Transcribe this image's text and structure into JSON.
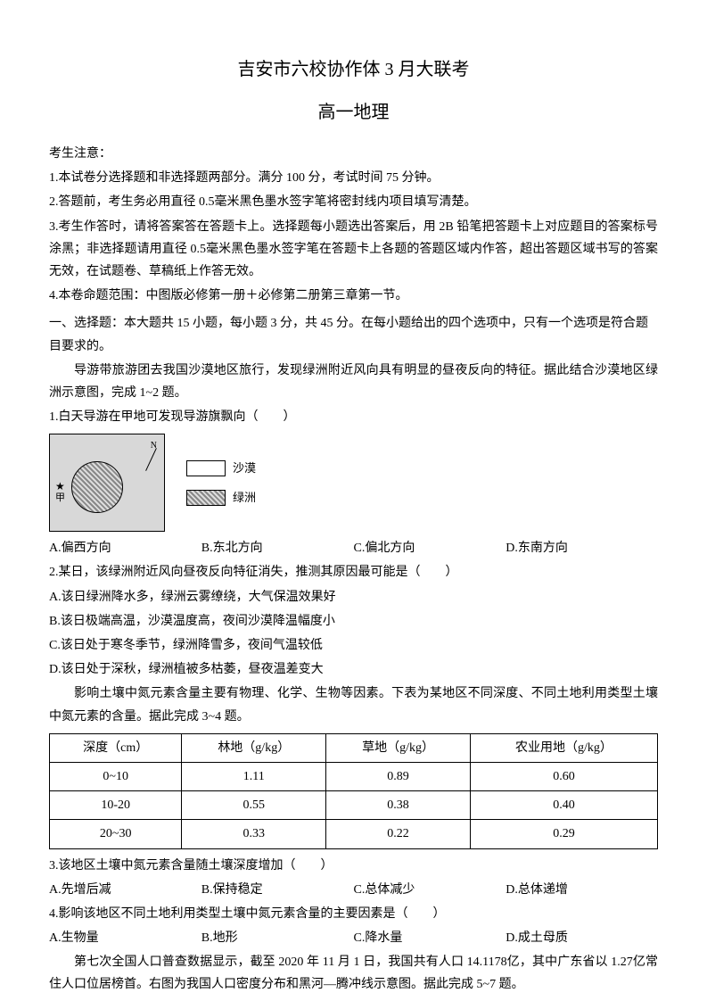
{
  "header": {
    "title_main": "吉安市六校协作体 3 月大联考",
    "title_sub": "高一地理"
  },
  "notice": {
    "header": "考生注意：",
    "items": [
      "1.本试卷分选择题和非选择题两部分。满分 100 分，考试时间 75 分钟。",
      "2.答题前，考生务必用直径 0.5毫米黑色墨水签字笔将密封线内项目填写清楚。",
      "3.考生作答时，请将答案答在答题卡上。选择题每小题选出答案后，用 2B 铅笔把答题卡上对应题目的答案标号涂黑；非选择题请用直径 0.5毫米黑色墨水签字笔在答题卡上各题的答题区域内作答，超出答题区域书写的答案无效，在试题卷、草稿纸上作答无效。",
      "4.本卷命题范围：中图版必修第一册＋必修第二册第三章第一节。"
    ]
  },
  "section1_header": "一、选择题：本大题共 15 小题，每小题 3 分，共 45 分。在每小题给出的四个选项中，只有一个选项是符合题目要求的。",
  "context1": "导游带旅游团去我国沙漠地区旅行，发现绿洲附近风向具有明显的昼夜反向的特征。据此结合沙漠地区绿洲示意图，完成 1~2 题。",
  "q1": {
    "text": "1.白天导游在甲地可发现导游旗飘向（　　）",
    "diagram": {
      "north_label": "N",
      "star": "★",
      "jia": "甲",
      "legend_desert": "沙漠",
      "legend_oasis": "绿洲"
    },
    "options": {
      "a": "A.偏西方向",
      "b": "B.东北方向",
      "c": "C.偏北方向",
      "d": "D.东南方向"
    }
  },
  "q2": {
    "text": "2.某日，该绿洲附近风向昼夜反向特征消失，推测其原因最可能是（　　）",
    "options": [
      "A.该日绿洲降水多，绿洲云雾缭绕，大气保温效果好",
      "B.该日极端高温，沙漠温度高，夜间沙漠降温幅度小",
      "C.该日处于寒冬季节，绿洲降雪多，夜间气温较低",
      "D.该日处于深秋，绿洲植被多枯萎，昼夜温差变大"
    ]
  },
  "context2": "影响土壤中氮元素含量主要有物理、化学、生物等因素。下表为某地区不同深度、不同土地利用类型土壤中氮元素的含量。据此完成 3~4 题。",
  "table": {
    "columns": [
      "深度（cm）",
      "林地（g/kg）",
      "草地（g/kg）",
      "农业用地（g/kg）"
    ],
    "rows": [
      [
        "0~10",
        "1.11",
        "0.89",
        "0.60"
      ],
      [
        "10-20",
        "0.55",
        "0.38",
        "0.40"
      ],
      [
        "20~30",
        "0.33",
        "0.22",
        "0.29"
      ]
    ]
  },
  "q3": {
    "text": "3.该地区土壤中氮元素含量随土壤深度增加（　　）",
    "options": {
      "a": "A.先增后减",
      "b": "B.保持稳定",
      "c": "C.总体减少",
      "d": "D.总体递增"
    }
  },
  "q4": {
    "text": "4.影响该地区不同土地利用类型土壤中氮元素含量的主要因素是（　　）",
    "options": {
      "a": "A.生物量",
      "b": "B.地形",
      "c": "C.降水量",
      "d": "D.成土母质"
    }
  },
  "context3": "第七次全国人口普查数据显示，截至 2020 年 11 月 1 日，我国共有人口 14.1178亿，其中广东省以 1.27亿常住人口位居榜首。右图为我国人口密度分布和黑河—腾冲线示意图。据此完成 5~7 题。"
}
